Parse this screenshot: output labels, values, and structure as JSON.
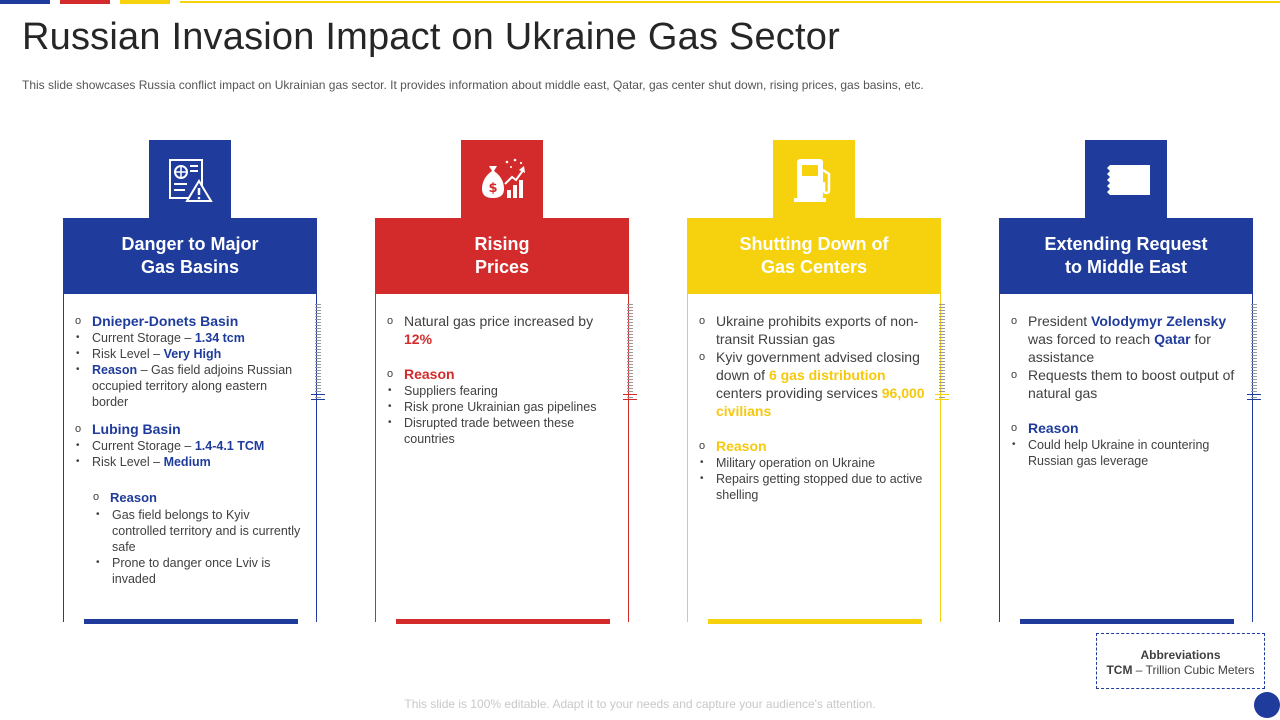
{
  "title": "Russian Invasion Impact on Ukraine Gas Sector",
  "subtitle": "This slide showcases Russia conflict impact on Ukrainian gas sector. It provides  information  about  middle east, Qatar, gas center shut down, rising prices, gas basins, etc.",
  "colors": {
    "blue": "#1f3c9c",
    "red": "#d32b2b",
    "yellow": "#f6d20e"
  },
  "cards": [
    {
      "icon": "warning-document-icon",
      "heading_line1": "Danger to Major",
      "heading_line2": "Gas Basins",
      "basin1_name": "Dnieper-Donets Basin",
      "basin1_storage_label": "Current Storage – ",
      "basin1_storage_value": "1.34 tcm",
      "basin1_risk_label": "Risk Level  – ",
      "basin1_risk_value": "Very High",
      "basin1_reason_label": "Reason",
      "basin1_reason_text": " – Gas field adjoins Russian occupied territory along eastern border",
      "basin2_name": "Lubing Basin",
      "basin2_storage_label": "Current Storage – ",
      "basin2_storage_value": "1.4-4.1 TCM",
      "basin2_risk_label": "Risk Level  – ",
      "basin2_risk_value": "Medium",
      "reason_label": "Reason",
      "reason_items": [
        "Gas field belongs to Kyiv controlled territory and is currently safe",
        "Prone to danger once Lviv is invaded"
      ]
    },
    {
      "icon": "money-bag-growth-icon",
      "heading_line1": "Rising",
      "heading_line2": "Prices",
      "point1_text": "Natural gas price increased by ",
      "point1_value": "12%",
      "reason_label": "Reason",
      "reason_items": [
        "Suppliers fearing",
        "Risk prone Ukrainian gas pipelines",
        "Disrupted trade between these countries"
      ]
    },
    {
      "icon": "gas-pump-icon",
      "heading_line1": "Shutting Down of",
      "heading_line2": "Gas Centers",
      "point1_text": "Ukraine prohibits exports of non-transit Russian gas",
      "point2_text_a": "Kyiv government advised closing down of ",
      "point2_value_a": "6 gas distribution",
      "point2_text_b": " centers providing services ",
      "point2_value_b": "96,000 civilians",
      "reason_label": "Reason",
      "reason_items": [
        "Military operation  on Ukraine",
        "Repairs getting stopped due to active shelling"
      ]
    },
    {
      "icon": "flag-icon",
      "heading_line1": "Extending Request",
      "heading_line2": "to Middle East",
      "point1_text_a": "President ",
      "point1_value_a": "Volodymyr  Zelensky",
      "point1_text_b": " was forced to reach ",
      "point1_value_b": "Qatar",
      "point1_text_c": " for assistance",
      "point2_text": "Requests them to boost output of natural gas",
      "reason_label": "Reason",
      "reason_items": [
        "Could help Ukraine in countering Russian gas leverage"
      ]
    }
  ],
  "abbreviations": {
    "title": "Abbreviations",
    "term": "TCM",
    "definition": " – Trillion Cubic Meters"
  },
  "footer": "This slide is 100% editable. Adapt it to your needs and capture your audience's attention."
}
